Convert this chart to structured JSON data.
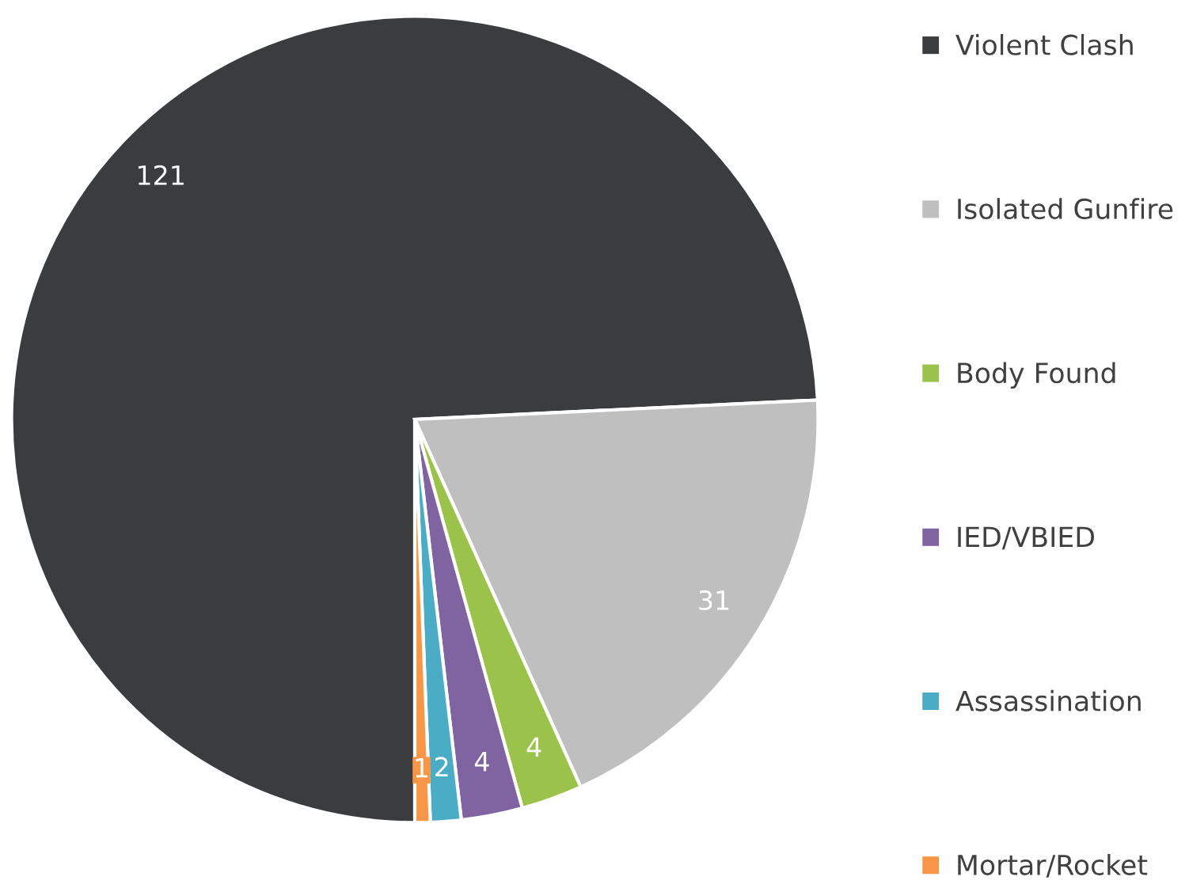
{
  "chart_data": {
    "type": "pie",
    "categories": [
      "Violent Clash",
      "Isolated Gunfire",
      "Body Found",
      "IED/VBIED",
      "Assassination",
      "Mortar/Rocket"
    ],
    "values": [
      121,
      31,
      4,
      4,
      2,
      1
    ],
    "colors": [
      "#3b3c3e",
      "#bfbfbf",
      "#9bc34b",
      "#8064a2",
      "#4bacc6",
      "#f79646"
    ],
    "data_labels": true,
    "legend": "right"
  }
}
